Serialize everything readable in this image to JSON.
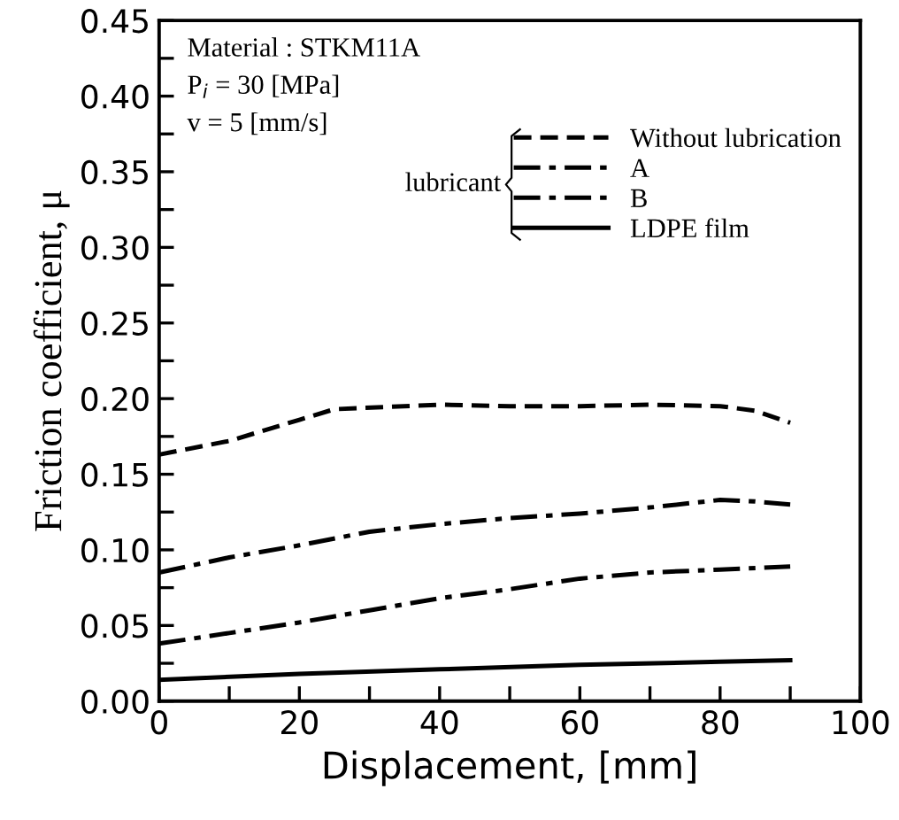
{
  "chart_data": {
    "type": "line",
    "xlabel": "Displacement, [mm]",
    "ylabel": "Friction coefficient, μ",
    "xlim": [
      0,
      100
    ],
    "ylim": [
      0,
      0.45
    ],
    "xticks": [
      0,
      {
        "value": 10,
        "label": null
      },
      20,
      {
        "value": 30,
        "label": null
      },
      40,
      {
        "value": 50,
        "label": null
      },
      60,
      {
        "value": 70,
        "label": null
      },
      80,
      {
        "value": 90,
        "label": null
      },
      100
    ],
    "yticks": [
      {
        "value": 0,
        "label": "0.00"
      },
      {
        "value": 0.025,
        "label": null
      },
      {
        "value": 0.05,
        "label": "0.05"
      },
      {
        "value": 0.075,
        "label": null
      },
      {
        "value": 0.1,
        "label": "0.10"
      },
      {
        "value": 0.125,
        "label": null
      },
      {
        "value": 0.15,
        "label": "0.15"
      },
      {
        "value": 0.175,
        "label": null
      },
      {
        "value": 0.2,
        "label": "0.20"
      },
      {
        "value": 0.225,
        "label": null
      },
      {
        "value": 0.25,
        "label": "0.25"
      },
      {
        "value": 0.275,
        "label": null
      },
      {
        "value": 0.3,
        "label": "0.30"
      },
      {
        "value": 0.325,
        "label": null
      },
      {
        "value": 0.35,
        "label": "0.35"
      },
      {
        "value": 0.375,
        "label": null
      },
      {
        "value": 0.4,
        "label": "0.40"
      },
      {
        "value": 0.425,
        "label": null
      },
      {
        "value": 0.45,
        "label": "0.45"
      }
    ],
    "grid": false,
    "legend": "top right",
    "legend_title": "lubricant",
    "annotations": [
      "Material : STKM11A",
      "P$_{i}$ = 30 [MPa]",
      "v = 5 [mm/s]"
    ],
    "series": [
      {
        "name": "Without lubrication",
        "color": "#000000",
        "line_style": "dashed",
        "x": [
          0,
          10,
          20,
          25,
          40,
          50,
          60,
          70,
          80,
          85,
          90
        ],
        "values": [
          0.163,
          0.172,
          0.186,
          0.193,
          0.196,
          0.195,
          0.195,
          0.196,
          0.195,
          0.192,
          0.184
        ]
      },
      {
        "name": "A",
        "color": "#000000",
        "line_style": "dashdot",
        "x": [
          0,
          10,
          20,
          30,
          40,
          50,
          60,
          70,
          80,
          85,
          90
        ],
        "values": [
          0.085,
          0.095,
          0.103,
          0.112,
          0.117,
          0.121,
          0.124,
          0.128,
          0.133,
          0.132,
          0.13
        ]
      },
      {
        "name": "B",
        "color": "#000000",
        "line_style": "dashdot",
        "x": [
          0,
          10,
          20,
          30,
          40,
          50,
          60,
          70,
          80,
          90
        ],
        "values": [
          0.038,
          0.045,
          0.052,
          0.06,
          0.068,
          0.074,
          0.081,
          0.085,
          0.087,
          0.089
        ]
      },
      {
        "name": "LDPE film",
        "color": "#000000",
        "line_style": "solid",
        "x": [
          0,
          20,
          40,
          60,
          80,
          90
        ],
        "values": [
          0.014,
          0.018,
          0.021,
          0.024,
          0.026,
          0.027
        ]
      }
    ]
  }
}
